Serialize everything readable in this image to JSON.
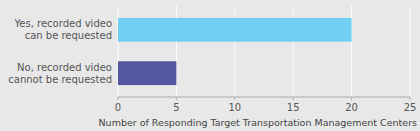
{
  "chart_data": {
    "type": "bar",
    "orientation": "horizontal",
    "categories": [
      "Yes, recorded video\ncan be requested",
      "No, recorded video\ncannot be requested"
    ],
    "values": [
      20,
      5
    ],
    "colors": [
      "#72cff4",
      "#5457a0"
    ],
    "xlabel": "Number of Responding Target Transportation Management Centers",
    "xlim": [
      0,
      25
    ],
    "xticks": [
      0,
      5,
      10,
      15,
      20,
      25
    ],
    "grid": true
  }
}
